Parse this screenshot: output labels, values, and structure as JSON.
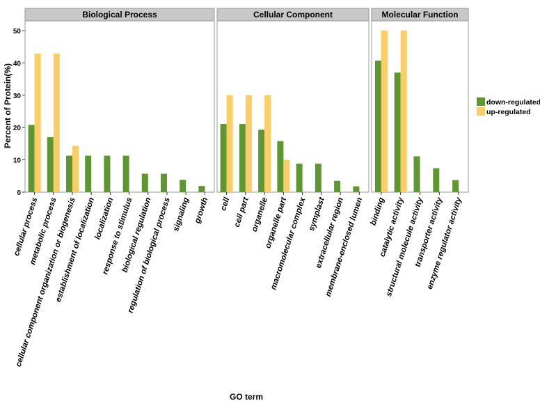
{
  "chart_data": {
    "type": "bar",
    "xlabel": "GO term",
    "ylabel": "Percent of Protein(%)",
    "ylim": [
      0,
      53
    ],
    "yticks": [
      0,
      10,
      20,
      30,
      40,
      50
    ],
    "legend_position": "right",
    "grid": false,
    "series": [
      {
        "name": "down-regulated",
        "color": "#5e9732"
      },
      {
        "name": "up-regulated",
        "color": "#fbcd66"
      }
    ],
    "facets": [
      {
        "title": "Biological Process",
        "categories": [
          "cellular process",
          "metabolic process",
          "cellular component organization or biogenesis",
          "establishment of localization",
          "localization",
          "response to stimulus",
          "biological regulation",
          "regulation of biological process",
          "signaling",
          "growth"
        ],
        "down": [
          20.8,
          17.0,
          11.3,
          11.3,
          11.3,
          11.3,
          5.7,
          5.7,
          3.8,
          1.9
        ],
        "up": [
          42.9,
          42.9,
          14.3,
          null,
          null,
          null,
          null,
          null,
          null,
          null
        ]
      },
      {
        "title": "Cellular Component",
        "categories": [
          "cell",
          "cell part",
          "organelle",
          "organelle part",
          "macromolecular complex",
          "symplast",
          "extracellular region",
          "membrane-enclosed lumen"
        ],
        "down": [
          21.1,
          21.1,
          19.3,
          15.8,
          8.8,
          8.8,
          3.5,
          1.8
        ],
        "up": [
          30.0,
          30.0,
          30.0,
          10.0,
          null,
          null,
          null,
          null
        ]
      },
      {
        "title": "Molecular Function",
        "categories": [
          "binding",
          "catalytic activity",
          "structural molecule activity",
          "transporter activity",
          "enzyme regulator activity"
        ],
        "down": [
          40.7,
          37.0,
          11.1,
          7.4,
          3.7
        ],
        "up": [
          50.0,
          50.0,
          null,
          null,
          null
        ]
      }
    ]
  }
}
